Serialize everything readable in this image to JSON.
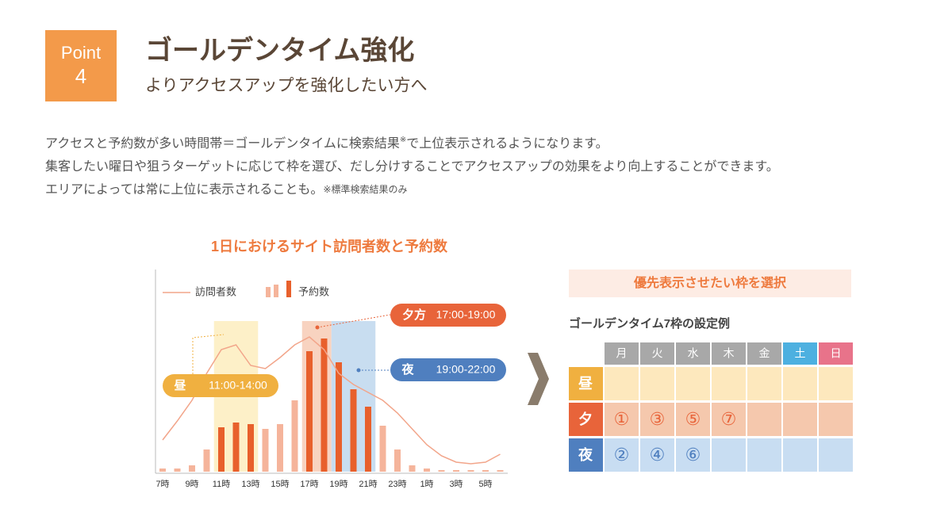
{
  "header": {
    "badge_label": "Point",
    "badge_number": "4",
    "title": "ゴールデンタイム強化",
    "subtitle": "よりアクセスアップを強化したい方へ"
  },
  "body": {
    "line1": [
      "アクセスと予約数が多い時間帯＝ゴールデンタイムに検索結果",
      "※",
      "で上位表示されるようになります。"
    ],
    "line2": "集客したい曜日や狙うターゲットに応じて枠を選び、だし分けすることでアクセスアップの効果をより向上することができます。",
    "line3": "エリアによっては常に上位に表示されることも。",
    "line3_note": "※標準検索結果のみ"
  },
  "chart_data": {
    "type": "bar_line",
    "title": "1日におけるサイト訪問者数と予約数",
    "categories": [
      "7時",
      null,
      "9時",
      null,
      "11時",
      null,
      "13時",
      null,
      "15時",
      null,
      "17時",
      null,
      "19時",
      null,
      "21時",
      null,
      "23時",
      null,
      "1時",
      null,
      "3時",
      null,
      "5時",
      null
    ],
    "ylim": [
      0,
      100
    ],
    "series": [
      {
        "name": "訪問者数",
        "kind": "line",
        "color": "#f2a58a",
        "values": [
          20,
          32,
          45,
          62,
          77,
          80,
          67,
          65,
          72,
          80,
          85,
          77,
          62,
          55,
          50,
          45,
          37,
          27,
          17,
          10,
          6,
          5,
          6,
          11
        ]
      },
      {
        "name": "予約数",
        "kind": "bar",
        "color": "#f5b49b",
        "values": [
          2,
          2,
          4,
          14,
          28,
          31,
          30,
          27,
          30,
          45,
          76,
          84,
          69,
          52,
          41,
          29,
          14,
          4,
          2,
          1,
          1,
          1,
          1,
          1
        ],
        "colors": [
          "#f5b49b",
          "#f5b49b",
          "#f5b49b",
          "#f5b49b",
          "#e8602c",
          "#e8602c",
          "#e8602c",
          "#f5b49b",
          "#f5b49b",
          "#f5b49b",
          "#e8602c",
          "#e8602c",
          "#e8602c",
          "#e8602c",
          "#e8602c",
          "#f5b49b",
          "#f5b49b",
          "#f5b49b",
          "#f5b49b",
          "#f5b49b",
          "#f5b49b",
          "#f5b49b",
          "#f5b49b",
          "#f5b49b"
        ]
      }
    ],
    "bands": [
      {
        "name": "昼",
        "time": "11:00-14:00",
        "color": "#f0b040",
        "fill": "#fdf0c8"
      },
      {
        "name": "夕方",
        "time": "17:00-19:00",
        "color": "#e8643a",
        "fill": "#f8d3c0"
      },
      {
        "name": "夜",
        "time": "19:00-22:00",
        "color": "#4f7fbf",
        "fill": "#c8ddf0"
      }
    ]
  },
  "schedule": {
    "heading": "優先表示させたい枠を選択",
    "subheading": "ゴールデンタイム7枠の設定例",
    "days": [
      "月",
      "火",
      "水",
      "木",
      "金",
      "土",
      "日"
    ],
    "day_colors": [
      "#a8a8a8",
      "#a8a8a8",
      "#a8a8a8",
      "#a8a8a8",
      "#a8a8a8",
      "#4db0e0",
      "#e8738a"
    ],
    "rows": [
      {
        "label": "昼",
        "color": "#f0b040",
        "fill": "#fde8bd",
        "text_color": "#e8643a",
        "cells": []
      },
      {
        "label": "夕",
        "color": "#e8643a",
        "fill": "#f5c8ad",
        "text_color": "#e8643a",
        "cells": [
          "①",
          "③",
          "⑤",
          "⑦"
        ]
      },
      {
        "label": "夜",
        "color": "#4f7fbf",
        "fill": "#c8ddf2",
        "text_color": "#4f7fbf",
        "cells": [
          "②",
          "④",
          "⑥"
        ]
      }
    ]
  }
}
